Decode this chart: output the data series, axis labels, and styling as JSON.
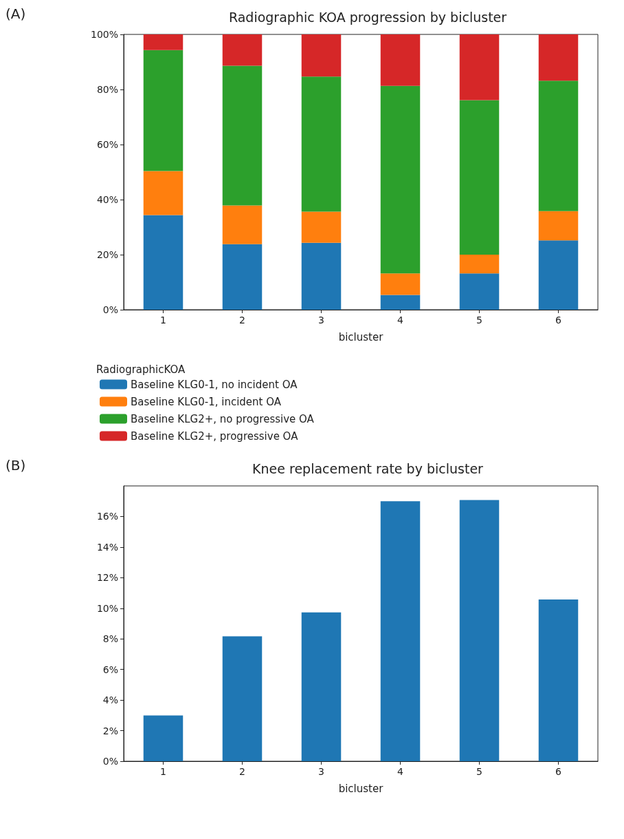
{
  "chart_data": [
    {
      "type": "bar",
      "title": "Radiographic KOA progression by bicluster",
      "xlabel": "bicluster",
      "legend_title": "RadiographicKOA",
      "annotations": [
        "(A)"
      ],
      "categories": [
        "1",
        "2",
        "3",
        "4",
        "5",
        "6"
      ],
      "stacked": true,
      "legend": "bottom",
      "grid": false,
      "series": [
        {
          "name": "Baseline KLG0-1, no incident OA",
          "color": "#1f77b4",
          "values": [
            34.4,
            23.8,
            24.3,
            5.4,
            13.2,
            25.2
          ]
        },
        {
          "name": "Baseline KLG0-1, incident OA",
          "color": "#ff7f0e",
          "values": [
            16.0,
            14.1,
            11.3,
            7.8,
            6.8,
            10.6
          ]
        },
        {
          "name": "Baseline KLG2+, no progressive OA",
          "color": "#2ca02c",
          "values": [
            43.9,
            50.7,
            49.1,
            68.1,
            56.1,
            47.4
          ]
        },
        {
          "name": "Baseline KLG2+, progressive OA",
          "color": "#d62728",
          "values": [
            5.7,
            11.4,
            15.3,
            18.7,
            23.9,
            16.8
          ]
        }
      ],
      "ylim": [
        0,
        100
      ],
      "yticks": [
        {
          "value": 0,
          "label": "0%"
        },
        {
          "value": 20,
          "label": "20%"
        },
        {
          "value": 40,
          "label": "40%"
        },
        {
          "value": 60,
          "label": "60%"
        },
        {
          "value": 80,
          "label": "80%"
        },
        {
          "value": 100,
          "label": "100%"
        }
      ]
    },
    {
      "type": "bar",
      "title": "Knee replacement rate by bicluster",
      "xlabel": "bicluster",
      "annotations": [
        "(B)"
      ],
      "categories": [
        "1",
        "2",
        "3",
        "4",
        "5",
        "6"
      ],
      "grid": false,
      "series": [
        {
          "color": "#1f77b4",
          "values": [
            2.99,
            8.17,
            9.73,
            17.0,
            17.08,
            10.57
          ]
        }
      ],
      "ylim": [
        0,
        18
      ],
      "yticks": [
        {
          "value": 0,
          "label": "0%"
        },
        {
          "value": 2,
          "label": "2%"
        },
        {
          "value": 4,
          "label": "4%"
        },
        {
          "value": 6,
          "label": "6%"
        },
        {
          "value": 8,
          "label": "8%"
        },
        {
          "value": 10,
          "label": "10%"
        },
        {
          "value": 12,
          "label": "12%"
        },
        {
          "value": 14,
          "label": "14%"
        },
        {
          "value": 16,
          "label": "16%"
        }
      ]
    }
  ]
}
